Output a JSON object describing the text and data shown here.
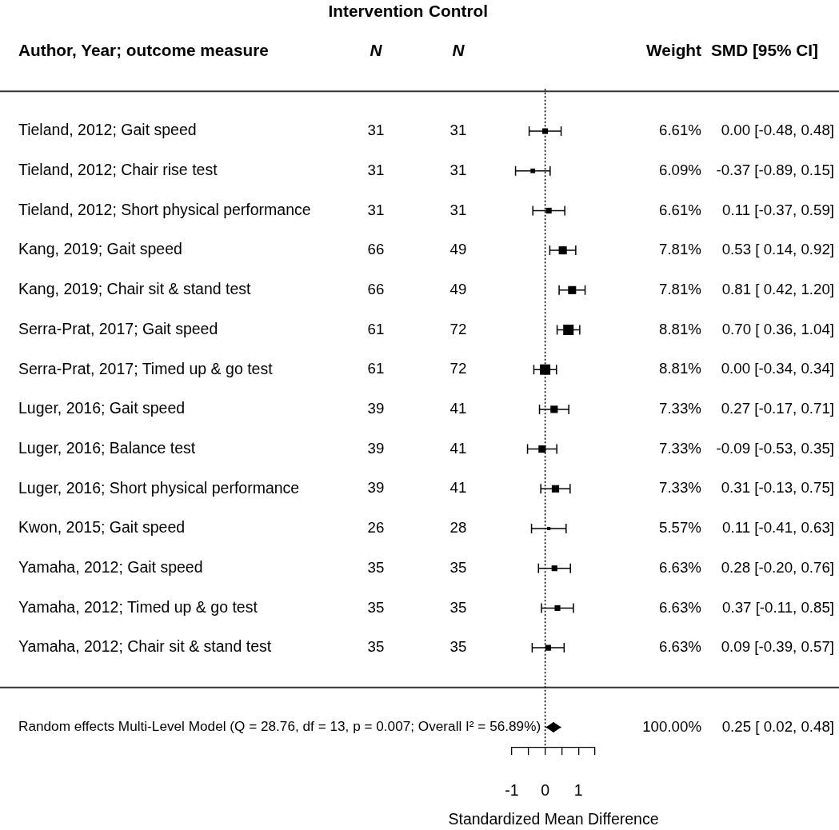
{
  "chart_data": {
    "type": "scatter",
    "orientation": "horizontal",
    "xlabel": "Standardized Mean Difference",
    "categories": [
      null,
      "Tieland, 2012; Gait speed",
      "Tieland, 2012; Chair rise test",
      "Tieland, 2012; Short physical performance",
      "Kang, 2019; Gait speed",
      "Kang, 2019; Chair sit & stand test",
      "Serra-Prat, 2017; Gait speed",
      "Serra-Prat, 2017; Timed up & go test",
      "Luger, 2016; Gait speed",
      "Luger, 2016; Balance test",
      "Luger, 2016; Short physical performance",
      "Kwon, 2015; Gait speed",
      "Yamaha, 2012; Gait speed",
      "Yamaha, 2012; Timed up & go test",
      "Yamaha, 2012; Chair sit & stand test",
      null,
      "Random effects Multi-Level Model (Q = 28.76, df = 13, p = 0.007; Overall I² = 56.89%)"
    ],
    "xlim": [
      -1,
      1.5
    ],
    "xticks": [
      -1,
      {
        "value": -0.5,
        "label": null
      },
      0,
      {
        "value": 0.5,
        "label": null
      },
      1,
      {
        "value": 1.5,
        "label": null
      }
    ],
    "ref_lines": [
      {
        "axis": "x",
        "value": 0,
        "line_style": "dotted",
        "color": "#000000"
      }
    ],
    "annotations": [
      "Intervention",
      "Control",
      "Author, Year; outcome measure"
    ],
    "series": [
      {
        "marker": "square",
        "color": "#000000",
        "values": [
          null,
          0.0,
          -0.37,
          0.11,
          0.53,
          0.81,
          0.7,
          0.0,
          0.27,
          -0.09,
          0.31,
          0.11,
          0.28,
          0.37,
          0.09,
          null,
          null
        ],
        "errors": [
          null,
          [
            -0.48,
            0.48
          ],
          [
            -0.89,
            0.15
          ],
          [
            -0.37,
            0.59
          ],
          [
            0.14,
            0.92
          ],
          [
            0.42,
            1.2
          ],
          [
            0.36,
            1.04
          ],
          [
            -0.34,
            0.34
          ],
          [
            -0.17,
            0.71
          ],
          [
            -0.53,
            0.35
          ],
          [
            -0.13,
            0.75
          ],
          [
            -0.41,
            0.63
          ],
          [
            -0.2,
            0.76
          ],
          [
            -0.11,
            0.85
          ],
          [
            -0.39,
            0.57
          ],
          null,
          null
        ],
        "sizes": [
          null,
          0.3,
          0.2,
          0.3,
          0.6,
          0.6,
          1,
          1,
          0.5,
          0.5,
          0.5,
          0.1,
          0.3,
          0.3,
          0.3,
          null,
          null
        ]
      },
      {
        "marker": "diamond",
        "color": "#000000",
        "values": [
          null,
          null,
          null,
          null,
          null,
          null,
          null,
          null,
          null,
          null,
          null,
          null,
          null,
          null,
          null,
          null,
          0.25
        ],
        "errors": [
          null,
          null,
          null,
          null,
          null,
          null,
          null,
          null,
          null,
          null,
          null,
          null,
          null,
          null,
          null,
          null,
          [
            0.02,
            0.48
          ]
        ]
      },
      {
        "name": "N",
        "type": "other",
        "values": [
          null,
          null,
          null,
          null,
          null,
          null,
          null,
          null,
          null,
          null,
          null,
          null,
          null,
          null,
          null,
          null,
          null
        ],
        "value_labels": [
          null,
          "31",
          "31",
          "31",
          "66",
          "66",
          "61",
          "61",
          "39",
          "39",
          "39",
          "26",
          "35",
          "35",
          "35",
          null,
          null
        ]
      },
      {
        "name": "N",
        "type": "other",
        "values": [
          null,
          null,
          null,
          null,
          null,
          null,
          null,
          null,
          null,
          null,
          null,
          null,
          null,
          null,
          null,
          null,
          null
        ],
        "value_labels": [
          null,
          "31",
          "31",
          "31",
          "49",
          "49",
          "72",
          "72",
          "41",
          "41",
          "41",
          "28",
          "35",
          "35",
          "35",
          null,
          null
        ]
      },
      {
        "name": "Weight",
        "type": "other",
        "values": [
          null,
          null,
          null,
          null,
          null,
          null,
          null,
          null,
          null,
          null,
          null,
          null,
          null,
          null,
          null,
          null,
          null
        ],
        "value_labels": [
          null,
          "6.61%",
          "6.09%",
          "6.61%",
          "7.81%",
          "7.81%",
          "8.81%",
          "8.81%",
          "7.33%",
          "7.33%",
          "7.33%",
          "5.57%",
          "6.63%",
          "6.63%",
          "6.63%",
          null,
          "100.00%"
        ]
      },
      {
        "name": "SMD [95% CI]",
        "type": "other",
        "values": [
          null,
          null,
          null,
          null,
          null,
          null,
          null,
          null,
          null,
          null,
          null,
          null,
          null,
          null,
          null,
          null,
          null
        ],
        "value_labels": [
          null,
          "0.00 [-0.48, 0.48]",
          "-0.37 [-0.89, 0.15]",
          "0.11 [-0.37, 0.59]",
          "0.53 [ 0.14, 0.92]",
          "0.81 [ 0.42, 1.20]",
          "0.70 [ 0.36, 1.04]",
          "0.00 [-0.34, 0.34]",
          "0.27 [-0.17, 0.71]",
          "-0.09 [-0.53, 0.35]",
          "0.31 [-0.13, 0.75]",
          "0.11 [-0.41, 0.63]",
          "0.28 [-0.20, 0.76]",
          "0.37 [-0.11, 0.85]",
          "0.09 [-0.39, 0.57]",
          null,
          "0.25 [ 0.02, 0.48]"
        ]
      }
    ]
  }
}
